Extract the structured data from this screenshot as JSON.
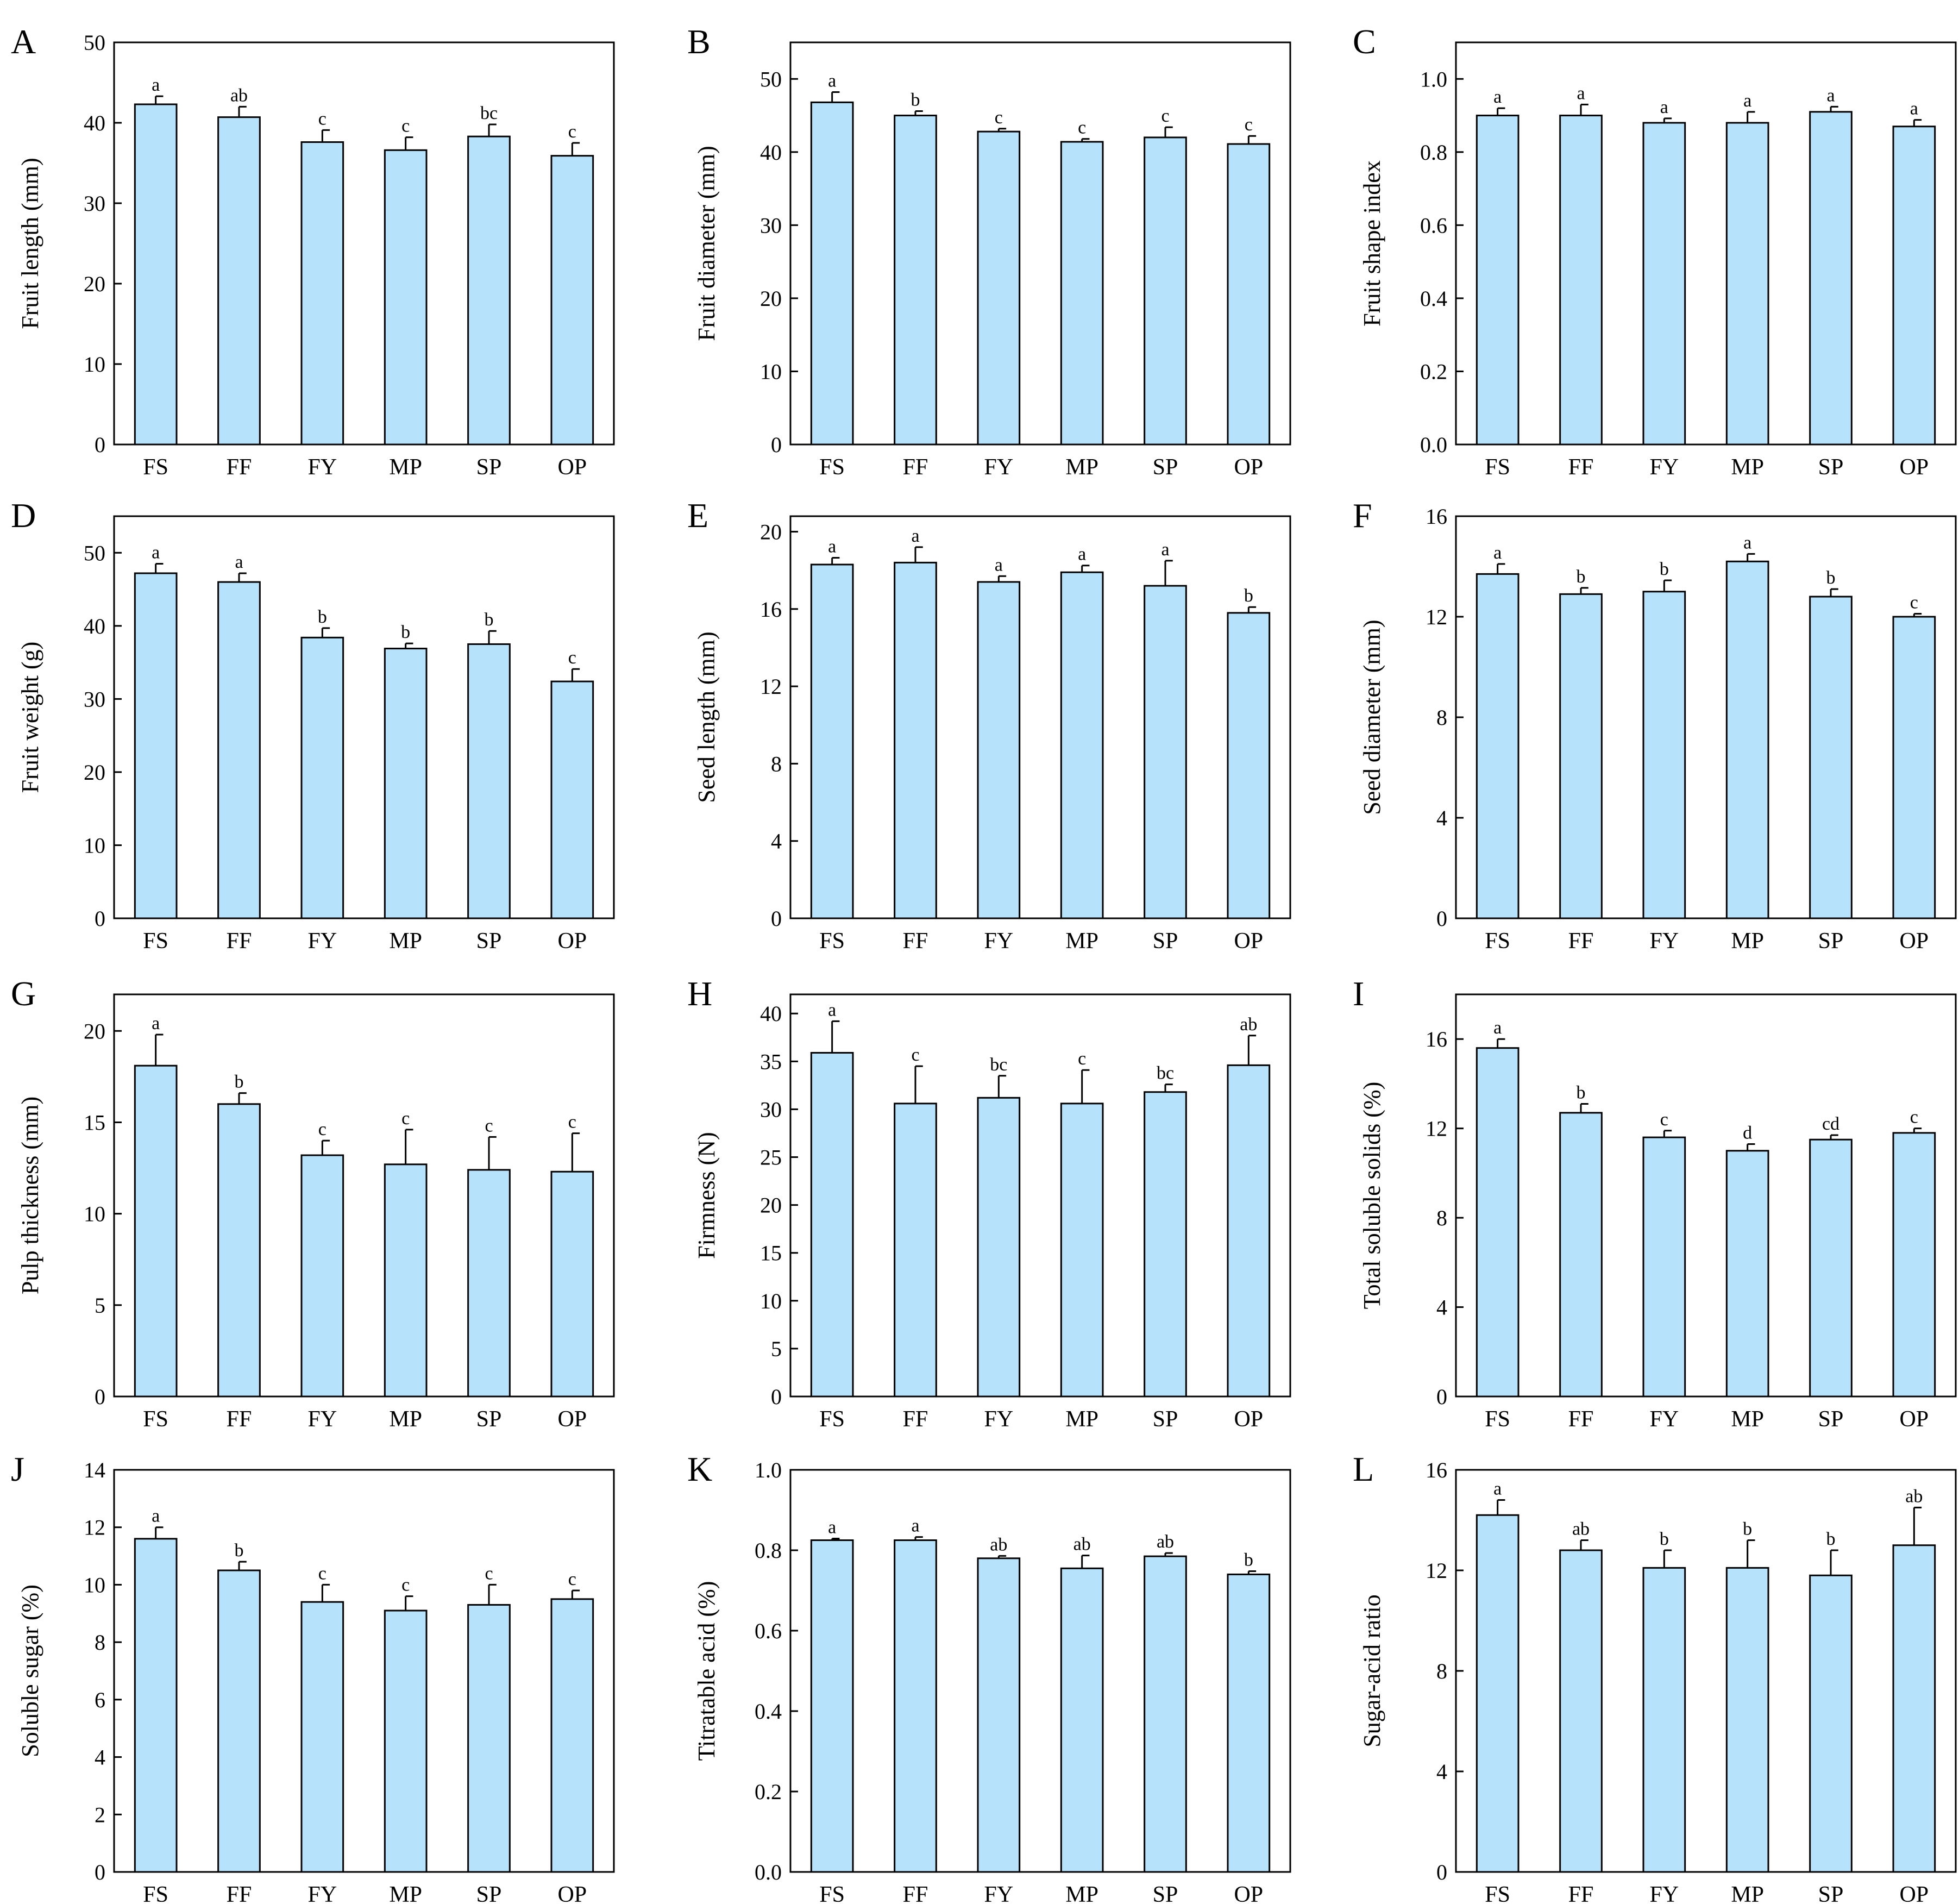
{
  "figure": {
    "categories": [
      "FS",
      "FF",
      "FY",
      "MP",
      "SP",
      "OP"
    ],
    "bar_color": "#b7e2fb",
    "line_color": "#000000"
  },
  "chart_data": [
    {
      "id": "A",
      "type": "bar",
      "ylabel": "Fruit length (mm)",
      "ylim": [
        0,
        50
      ],
      "yticks": [
        0,
        10,
        20,
        30,
        40,
        50
      ],
      "tick_decimals": 0,
      "values": [
        42.3,
        40.7,
        37.6,
        36.6,
        38.3,
        35.9
      ],
      "errors": [
        1.0,
        1.3,
        1.5,
        1.6,
        1.5,
        1.6
      ],
      "letters": [
        "a",
        "ab",
        "c",
        "c",
        "bc",
        "c"
      ]
    },
    {
      "id": "B",
      "type": "bar",
      "ylabel": "Fruit diameter (mm)",
      "ylim": [
        0,
        55
      ],
      "yticks": [
        0,
        10,
        20,
        30,
        40,
        50
      ],
      "tick_decimals": 0,
      "values": [
        46.8,
        45.0,
        42.8,
        41.4,
        42.0,
        41.1
      ],
      "errors": [
        1.4,
        0.6,
        0.4,
        0.4,
        1.4,
        1.1
      ],
      "letters": [
        "a",
        "b",
        "c",
        "c",
        "c",
        "c"
      ]
    },
    {
      "id": "C",
      "type": "bar",
      "ylabel": "Fruit shape index",
      "ylim": [
        0,
        1.1
      ],
      "yticks": [
        0.0,
        0.2,
        0.4,
        0.6,
        0.8,
        1.0
      ],
      "tick_decimals": 1,
      "values": [
        0.9,
        0.9,
        0.88,
        0.88,
        0.91,
        0.87
      ],
      "errors": [
        0.02,
        0.03,
        0.012,
        0.03,
        0.014,
        0.018
      ],
      "letters": [
        "a",
        "a",
        "a",
        "a",
        "a",
        "a"
      ]
    },
    {
      "id": "D",
      "type": "bar",
      "ylabel": "Fruit weight (g)",
      "ylim": [
        0,
        55
      ],
      "yticks": [
        0,
        10,
        20,
        30,
        40,
        50
      ],
      "tick_decimals": 0,
      "values": [
        47.2,
        46.0,
        38.4,
        36.9,
        37.5,
        32.4
      ],
      "errors": [
        1.3,
        1.2,
        1.3,
        0.7,
        1.8,
        1.7
      ],
      "letters": [
        "a",
        "a",
        "b",
        "b",
        "b",
        "c"
      ]
    },
    {
      "id": "E",
      "type": "bar",
      "ylabel": "Seed length (mm)",
      "ylim": [
        0,
        20.8
      ],
      "yticks": [
        0,
        4,
        8,
        12,
        16,
        20
      ],
      "tick_decimals": 0,
      "values": [
        18.3,
        18.4,
        17.4,
        17.9,
        17.2,
        15.8
      ],
      "errors": [
        0.35,
        0.8,
        0.3,
        0.35,
        1.3,
        0.3
      ],
      "letters": [
        "a",
        "a",
        "a",
        "a",
        "a",
        "b"
      ]
    },
    {
      "id": "F",
      "type": "bar",
      "ylabel": "Seed diameter (mm)",
      "ylim": [
        0,
        16
      ],
      "yticks": [
        0,
        4,
        8,
        12,
        16
      ],
      "tick_decimals": 0,
      "values": [
        13.7,
        12.9,
        13.0,
        14.2,
        12.8,
        12.0
      ],
      "errors": [
        0.4,
        0.25,
        0.45,
        0.3,
        0.3,
        0.12
      ],
      "letters": [
        "a",
        "b",
        "b",
        "a",
        "b",
        "c"
      ]
    },
    {
      "id": "G",
      "type": "bar",
      "ylabel": "Pulp thickness (mm)",
      "ylim": [
        0,
        22
      ],
      "yticks": [
        0,
        5,
        10,
        15,
        20
      ],
      "tick_decimals": 0,
      "values": [
        18.1,
        16.0,
        13.2,
        12.7,
        12.4,
        12.3
      ],
      "errors": [
        1.7,
        0.6,
        0.8,
        1.9,
        1.8,
        2.1
      ],
      "letters": [
        "a",
        "b",
        "c",
        "c",
        "c",
        "c"
      ]
    },
    {
      "id": "H",
      "type": "bar",
      "ylabel": "Firmness (N)",
      "ylim": [
        0,
        42
      ],
      "yticks": [
        0,
        5,
        10,
        15,
        20,
        25,
        30,
        35,
        40
      ],
      "tick_decimals": 0,
      "values": [
        35.9,
        30.6,
        31.2,
        30.6,
        31.8,
        34.6
      ],
      "errors": [
        3.3,
        3.9,
        2.3,
        3.5,
        0.8,
        3.1
      ],
      "letters": [
        "a",
        "c",
        "bc",
        "c",
        "bc",
        "ab"
      ]
    },
    {
      "id": "I",
      "type": "bar",
      "ylabel": "Total soluble solids (%)",
      "ylim": [
        0,
        18
      ],
      "yticks": [
        0,
        4,
        8,
        12,
        16
      ],
      "tick_decimals": 0,
      "values": [
        15.6,
        12.7,
        11.6,
        11.0,
        11.5,
        11.8
      ],
      "errors": [
        0.4,
        0.4,
        0.3,
        0.3,
        0.2,
        0.2
      ],
      "letters": [
        "a",
        "b",
        "c",
        "d",
        "cd",
        "c"
      ]
    },
    {
      "id": "J",
      "type": "bar",
      "ylabel": "Soluble sugar (%)",
      "ylim": [
        0,
        14
      ],
      "yticks": [
        0,
        2,
        4,
        6,
        8,
        10,
        12,
        14
      ],
      "tick_decimals": 0,
      "values": [
        11.6,
        10.5,
        9.4,
        9.1,
        9.3,
        9.5
      ],
      "errors": [
        0.4,
        0.3,
        0.6,
        0.5,
        0.7,
        0.3
      ],
      "letters": [
        "a",
        "b",
        "c",
        "c",
        "c",
        "c"
      ]
    },
    {
      "id": "K",
      "type": "bar",
      "ylabel": "Titratable acid (%)",
      "ylim": [
        0,
        1.0
      ],
      "yticks": [
        0.0,
        0.2,
        0.4,
        0.6,
        0.8,
        1.0
      ],
      "tick_decimals": 1,
      "values": [
        0.825,
        0.825,
        0.78,
        0.755,
        0.785,
        0.74
      ],
      "errors": [
        0.004,
        0.008,
        0.006,
        0.032,
        0.008,
        0.008
      ],
      "letters": [
        "a",
        "a",
        "ab",
        "ab",
        "ab",
        "b"
      ]
    },
    {
      "id": "L",
      "type": "bar",
      "ylabel": "Sugar-acid ratio",
      "ylim": [
        0,
        16
      ],
      "yticks": [
        0,
        4,
        8,
        12,
        16
      ],
      "tick_decimals": 0,
      "values": [
        14.2,
        12.8,
        12.1,
        12.1,
        11.8,
        13.0
      ],
      "errors": [
        0.6,
        0.4,
        0.7,
        1.1,
        1.0,
        1.5
      ],
      "letters": [
        "a",
        "ab",
        "b",
        "b",
        "b",
        "ab"
      ]
    }
  ]
}
